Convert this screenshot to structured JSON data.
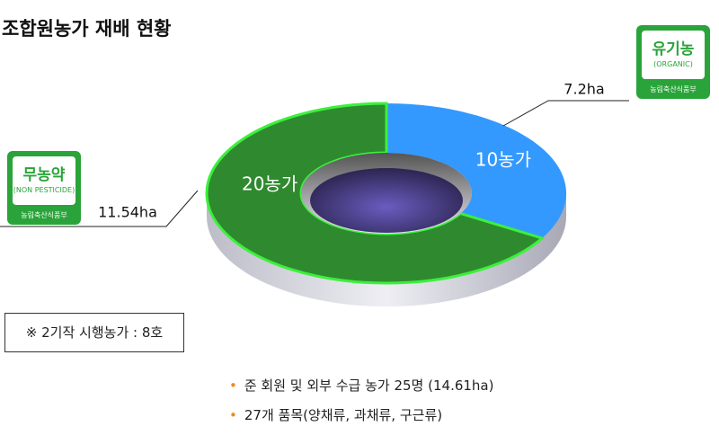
{
  "chart_data": {
    "type": "pie",
    "title": "조합원농가 재배 현황",
    "values": [
      10,
      20
    ],
    "value_labels": [
      "10농가",
      "20농가"
    ],
    "colors": [
      "#3399ff",
      "#2f8a2f"
    ],
    "areas": [
      7.2,
      11.54
    ],
    "area_labels": [
      "7.2ha",
      "11.54ha"
    ]
  },
  "badges": [
    {
      "title": "무농약",
      "subtitle": "(NON PESTICIDE)",
      "issuer": "농림축산식품부"
    },
    {
      "title": "유기농",
      "subtitle": "(ORGANIC)",
      "issuer": "농림축산식품부"
    }
  ],
  "note": "※ 2기작 시행농가 : 8호",
  "bullets": [
    "준 회원 및 외부 수급 농가 25명 (14.61ha)",
    "27개 품목(양채류, 과채류, 구근류)"
  ]
}
